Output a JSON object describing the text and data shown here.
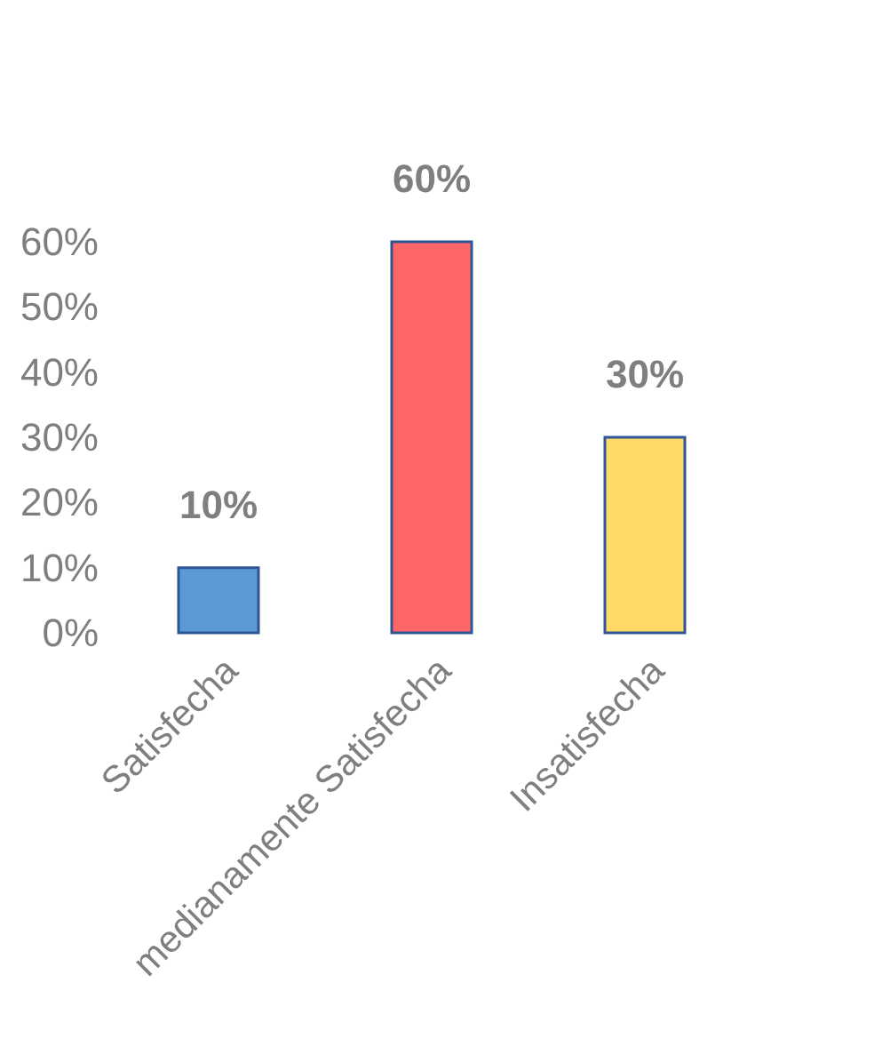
{
  "chart_data": {
    "type": "bar",
    "categories": [
      "Satisfecha",
      "medianamente Satisfecha",
      "Insatisfecha"
    ],
    "values": [
      10,
      60,
      30
    ],
    "colors": [
      "#5b9bd5",
      "#ff6666",
      "#ffd966"
    ],
    "value_labels": [
      "10%",
      "60%",
      "30%"
    ],
    "ylim": [
      0,
      60
    ],
    "yticks": [
      {
        "value": 0,
        "label": "0%"
      },
      {
        "value": 10,
        "label": "10%"
      },
      {
        "value": 20,
        "label": "20%"
      },
      {
        "value": 30,
        "label": "30%"
      },
      {
        "value": 40,
        "label": "40%"
      },
      {
        "value": 50,
        "label": "50%"
      },
      {
        "value": 60,
        "label": "60%"
      }
    ],
    "grid": false,
    "legend": false
  }
}
